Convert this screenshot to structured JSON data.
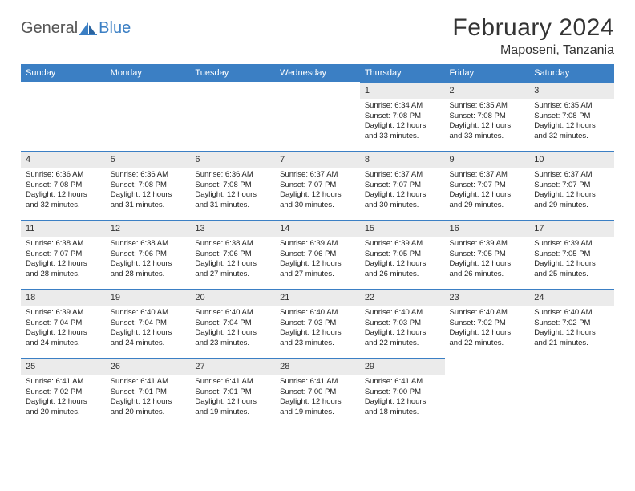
{
  "logo": {
    "word1": "General",
    "word2": "Blue"
  },
  "title": "February 2024",
  "location": "Maposeni, Tanzania",
  "colors": {
    "header_bg": "#3b7fc4",
    "header_text": "#ffffff",
    "daynum_bg": "#ebebeb",
    "border": "#3b7fc4",
    "logo_gray": "#555555",
    "logo_blue": "#3b7fc4"
  },
  "dayNames": [
    "Sunday",
    "Monday",
    "Tuesday",
    "Wednesday",
    "Thursday",
    "Friday",
    "Saturday"
  ],
  "weeks": [
    [
      null,
      null,
      null,
      null,
      {
        "n": "1",
        "sr": "Sunrise: 6:34 AM",
        "ss": "Sunset: 7:08 PM",
        "dl": "Daylight: 12 hours and 33 minutes."
      },
      {
        "n": "2",
        "sr": "Sunrise: 6:35 AM",
        "ss": "Sunset: 7:08 PM",
        "dl": "Daylight: 12 hours and 33 minutes."
      },
      {
        "n": "3",
        "sr": "Sunrise: 6:35 AM",
        "ss": "Sunset: 7:08 PM",
        "dl": "Daylight: 12 hours and 32 minutes."
      }
    ],
    [
      {
        "n": "4",
        "sr": "Sunrise: 6:36 AM",
        "ss": "Sunset: 7:08 PM",
        "dl": "Daylight: 12 hours and 32 minutes."
      },
      {
        "n": "5",
        "sr": "Sunrise: 6:36 AM",
        "ss": "Sunset: 7:08 PM",
        "dl": "Daylight: 12 hours and 31 minutes."
      },
      {
        "n": "6",
        "sr": "Sunrise: 6:36 AM",
        "ss": "Sunset: 7:08 PM",
        "dl": "Daylight: 12 hours and 31 minutes."
      },
      {
        "n": "7",
        "sr": "Sunrise: 6:37 AM",
        "ss": "Sunset: 7:07 PM",
        "dl": "Daylight: 12 hours and 30 minutes."
      },
      {
        "n": "8",
        "sr": "Sunrise: 6:37 AM",
        "ss": "Sunset: 7:07 PM",
        "dl": "Daylight: 12 hours and 30 minutes."
      },
      {
        "n": "9",
        "sr": "Sunrise: 6:37 AM",
        "ss": "Sunset: 7:07 PM",
        "dl": "Daylight: 12 hours and 29 minutes."
      },
      {
        "n": "10",
        "sr": "Sunrise: 6:37 AM",
        "ss": "Sunset: 7:07 PM",
        "dl": "Daylight: 12 hours and 29 minutes."
      }
    ],
    [
      {
        "n": "11",
        "sr": "Sunrise: 6:38 AM",
        "ss": "Sunset: 7:07 PM",
        "dl": "Daylight: 12 hours and 28 minutes."
      },
      {
        "n": "12",
        "sr": "Sunrise: 6:38 AM",
        "ss": "Sunset: 7:06 PM",
        "dl": "Daylight: 12 hours and 28 minutes."
      },
      {
        "n": "13",
        "sr": "Sunrise: 6:38 AM",
        "ss": "Sunset: 7:06 PM",
        "dl": "Daylight: 12 hours and 27 minutes."
      },
      {
        "n": "14",
        "sr": "Sunrise: 6:39 AM",
        "ss": "Sunset: 7:06 PM",
        "dl": "Daylight: 12 hours and 27 minutes."
      },
      {
        "n": "15",
        "sr": "Sunrise: 6:39 AM",
        "ss": "Sunset: 7:05 PM",
        "dl": "Daylight: 12 hours and 26 minutes."
      },
      {
        "n": "16",
        "sr": "Sunrise: 6:39 AM",
        "ss": "Sunset: 7:05 PM",
        "dl": "Daylight: 12 hours and 26 minutes."
      },
      {
        "n": "17",
        "sr": "Sunrise: 6:39 AM",
        "ss": "Sunset: 7:05 PM",
        "dl": "Daylight: 12 hours and 25 minutes."
      }
    ],
    [
      {
        "n": "18",
        "sr": "Sunrise: 6:39 AM",
        "ss": "Sunset: 7:04 PM",
        "dl": "Daylight: 12 hours and 24 minutes."
      },
      {
        "n": "19",
        "sr": "Sunrise: 6:40 AM",
        "ss": "Sunset: 7:04 PM",
        "dl": "Daylight: 12 hours and 24 minutes."
      },
      {
        "n": "20",
        "sr": "Sunrise: 6:40 AM",
        "ss": "Sunset: 7:04 PM",
        "dl": "Daylight: 12 hours and 23 minutes."
      },
      {
        "n": "21",
        "sr": "Sunrise: 6:40 AM",
        "ss": "Sunset: 7:03 PM",
        "dl": "Daylight: 12 hours and 23 minutes."
      },
      {
        "n": "22",
        "sr": "Sunrise: 6:40 AM",
        "ss": "Sunset: 7:03 PM",
        "dl": "Daylight: 12 hours and 22 minutes."
      },
      {
        "n": "23",
        "sr": "Sunrise: 6:40 AM",
        "ss": "Sunset: 7:02 PM",
        "dl": "Daylight: 12 hours and 22 minutes."
      },
      {
        "n": "24",
        "sr": "Sunrise: 6:40 AM",
        "ss": "Sunset: 7:02 PM",
        "dl": "Daylight: 12 hours and 21 minutes."
      }
    ],
    [
      {
        "n": "25",
        "sr": "Sunrise: 6:41 AM",
        "ss": "Sunset: 7:02 PM",
        "dl": "Daylight: 12 hours and 20 minutes."
      },
      {
        "n": "26",
        "sr": "Sunrise: 6:41 AM",
        "ss": "Sunset: 7:01 PM",
        "dl": "Daylight: 12 hours and 20 minutes."
      },
      {
        "n": "27",
        "sr": "Sunrise: 6:41 AM",
        "ss": "Sunset: 7:01 PM",
        "dl": "Daylight: 12 hours and 19 minutes."
      },
      {
        "n": "28",
        "sr": "Sunrise: 6:41 AM",
        "ss": "Sunset: 7:00 PM",
        "dl": "Daylight: 12 hours and 19 minutes."
      },
      {
        "n": "29",
        "sr": "Sunrise: 6:41 AM",
        "ss": "Sunset: 7:00 PM",
        "dl": "Daylight: 12 hours and 18 minutes."
      },
      null,
      null
    ]
  ]
}
